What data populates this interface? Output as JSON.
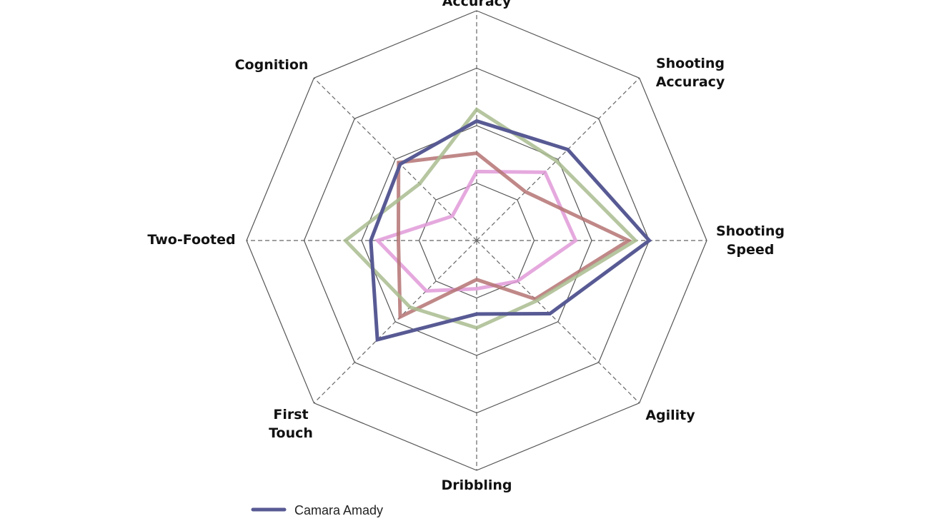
{
  "chart_data": {
    "type": "radar",
    "axes": [
      {
        "label": [
          "Accuracy"
        ]
      },
      {
        "label": [
          "Shooting",
          "Accuracy"
        ]
      },
      {
        "label": [
          "Shooting",
          "Speed"
        ]
      },
      {
        "label": [
          "Agility"
        ]
      },
      {
        "label": [
          "Dribbling"
        ]
      },
      {
        "label": [
          "First",
          "Touch"
        ]
      },
      {
        "label": [
          "Two-Footed"
        ]
      },
      {
        "label": [
          "Cognition"
        ]
      }
    ],
    "rlim": [
      0,
      100
    ],
    "rings": 4,
    "grid": true,
    "series": [
      {
        "name": "Camara Amady",
        "color": "#585a94",
        "values": [
          52,
          56,
          75,
          45,
          32,
          61,
          46,
          47
        ]
      },
      {
        "color": "#a9bc8f",
        "values": [
          57,
          49,
          69,
          37,
          38,
          41,
          57,
          35
        ]
      },
      {
        "color": "#b57373",
        "values": [
          38,
          30,
          66,
          36,
          17,
          47,
          34,
          48
        ]
      },
      {
        "color": "#e09ad8",
        "values": [
          30,
          42,
          43,
          25,
          21,
          31,
          43,
          15
        ]
      }
    ],
    "legend": {
      "placement": "bottom-left",
      "entries": [
        "Camara Amady"
      ]
    }
  }
}
